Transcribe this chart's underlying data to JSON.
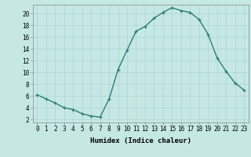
{
  "x": [
    0,
    1,
    2,
    3,
    4,
    5,
    6,
    7,
    8,
    9,
    10,
    11,
    12,
    13,
    14,
    15,
    16,
    17,
    18,
    19,
    20,
    21,
    22,
    23
  ],
  "y": [
    6.2,
    5.5,
    4.8,
    4.0,
    3.7,
    3.0,
    2.6,
    2.4,
    5.5,
    10.5,
    13.8,
    17.0,
    17.8,
    19.2,
    20.2,
    21.0,
    20.5,
    20.2,
    19.0,
    16.5,
    12.5,
    10.2,
    8.2,
    7.0
  ],
  "xlabel": "Humidex (Indice chaleur)",
  "xlim": [
    -0.5,
    23.5
  ],
  "ylim": [
    1.5,
    21.5
  ],
  "yticks": [
    2,
    4,
    6,
    8,
    10,
    12,
    14,
    16,
    18,
    20
  ],
  "xticks": [
    0,
    1,
    2,
    3,
    4,
    5,
    6,
    7,
    8,
    9,
    10,
    11,
    12,
    13,
    14,
    15,
    16,
    17,
    18,
    19,
    20,
    21,
    22,
    23
  ],
  "line_color": "#2e7d6e",
  "marker": "+",
  "bg_color": "#c5e8e5",
  "grid_color": "#aad4d0",
  "tick_fontsize": 5.5,
  "xlabel_fontsize": 6.5
}
